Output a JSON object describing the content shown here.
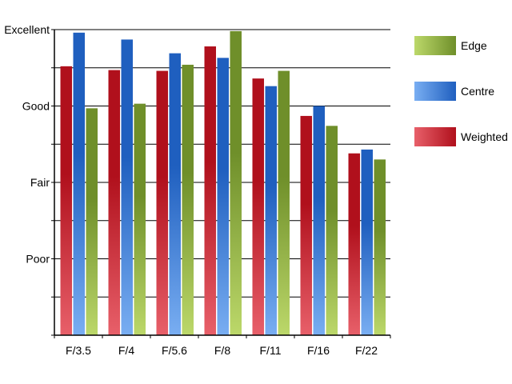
{
  "chart_data": {
    "type": "bar",
    "title": "",
    "xlabel": "",
    "ylabel": "",
    "categories": [
      "F/3.5",
      "F/4",
      "F/5.6",
      "F/8",
      "F/11",
      "F/16",
      "F/22"
    ],
    "y_ticks": [
      {
        "value": 1,
        "label": "Poor"
      },
      {
        "value": 2,
        "label": "Fair"
      },
      {
        "value": 3,
        "label": "Good"
      },
      {
        "value": 4,
        "label": "Excellent"
      }
    ],
    "ylim": [
      0,
      4
    ],
    "grid": true,
    "legend_position": "right",
    "series": [
      {
        "name": "Weighted",
        "color_top": "#b0101c",
        "color_bottom": "#e8606a",
        "values": [
          3.52,
          3.47,
          3.46,
          3.78,
          3.36,
          2.87,
          2.38
        ]
      },
      {
        "name": "Centre",
        "color_top": "#1f5fbf",
        "color_bottom": "#79aef2",
        "values": [
          3.96,
          3.87,
          3.69,
          3.63,
          3.26,
          3.0,
          2.43
        ]
      },
      {
        "name": "Edge",
        "color_top": "#6f8f2a",
        "color_bottom": "#bcd86a",
        "values": [
          2.97,
          3.03,
          3.54,
          3.98,
          3.46,
          2.74,
          2.3
        ]
      }
    ],
    "legend_order": [
      "Edge",
      "Centre",
      "Weighted"
    ]
  }
}
